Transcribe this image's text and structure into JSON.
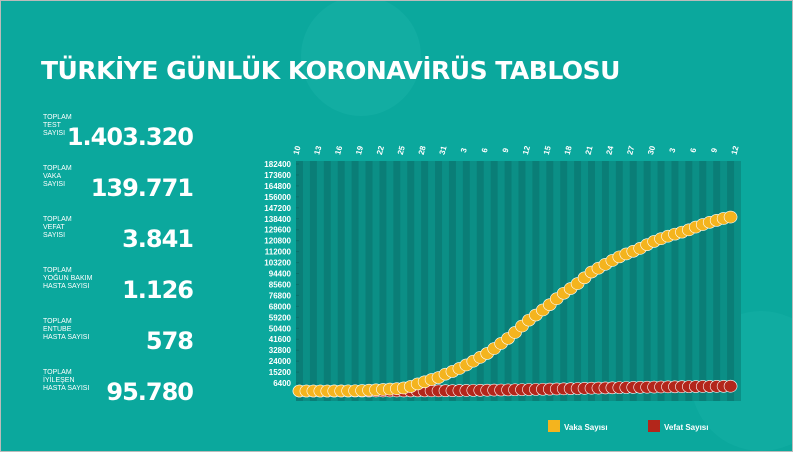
{
  "header": {
    "title": "TÜRKİYE GÜNLÜK KORONAVİRÜS TABLOSU"
  },
  "stats": [
    {
      "label": "TOPLAM\nTEST\nSAYISI",
      "value": "1.403.320"
    },
    {
      "label": "TOPLAM\nVAKA\nSAYISI",
      "value": "139.771"
    },
    {
      "label": "TOPLAM\nVEFAT\nSAYISI",
      "value": "3.841"
    },
    {
      "label": "TOPLAM\nYOĞUN BAKIM\nHASTA SAYISI",
      "value": "1.126"
    },
    {
      "label": "TOPLAM\nENTUBE\nHASTA SAYISI",
      "value": "578"
    },
    {
      "label": "TOPLAM\nİYİLEŞEN\nHASTA SAYISI",
      "value": "95.780"
    }
  ],
  "chart_data": {
    "type": "scatter",
    "categories": [
      "10",
      null,
      null,
      "13",
      null,
      null,
      "16",
      null,
      null,
      "19",
      null,
      null,
      "22",
      null,
      null,
      "25",
      null,
      null,
      "28",
      null,
      null,
      "31",
      null,
      null,
      "3",
      null,
      null,
      "6",
      null,
      null,
      "9",
      null,
      null,
      "12",
      null,
      null,
      "15",
      null,
      null,
      "18",
      null,
      null,
      "21",
      null,
      null,
      "24",
      null,
      null,
      "27",
      null,
      null,
      "30",
      null,
      null,
      "3",
      null,
      null,
      "6",
      null,
      null,
      "9",
      null,
      null,
      "12"
    ],
    "series": [
      {
        "name": "Vaka Sayısı",
        "color": "#f4b41e",
        "values": [
          0,
          1,
          1,
          5,
          6,
          18,
          47,
          98,
          191,
          359,
          670,
          947,
          1236,
          1529,
          1872,
          2433,
          3629,
          5698,
          7402,
          9217,
          10827,
          13531,
          15679,
          18135,
          20921,
          23934,
          27069,
          30217,
          34109,
          38226,
          42282,
          47029,
          52167,
          56956,
          61049,
          65111,
          69392,
          74193,
          78546,
          82329,
          86306,
          90980,
          95591,
          98674,
          101790,
          104912,
          107773,
          110130,
          112261,
          114653,
          117589,
          120204,
          122392,
          124375,
          126045,
          127659,
          129491,
          131744,
          133721,
          135569,
          137115,
          138657,
          139771,
          null
        ]
      },
      {
        "name": "Vefat Sayısı",
        "color": "#b3261b",
        "values": [
          0,
          0,
          0,
          0,
          0,
          0,
          0,
          1,
          2,
          3,
          9,
          21,
          30,
          37,
          44,
          59,
          75,
          92,
          108,
          131,
          168,
          214,
          277,
          356,
          425,
          501,
          574,
          649,
          725,
          812,
          908,
          1006,
          1101,
          1198,
          1296,
          1403,
          1518,
          1643,
          1769,
          1890,
          2017,
          2140,
          2259,
          2376,
          2491,
          2600,
          2706,
          2805,
          2900,
          2992,
          3081,
          3174,
          3258,
          3336,
          3397,
          3461,
          3520,
          3584,
          3641,
          3689,
          3739,
          3786,
          3841,
          null
        ]
      }
    ],
    "ylim": [
      0,
      182400
    ],
    "yticks": [
      6400,
      15200,
      24000,
      32800,
      41600,
      50400,
      59200,
      68000,
      76800,
      85600,
      94400,
      103200,
      112000,
      120800,
      129600,
      138400,
      147200,
      156000,
      164800,
      173600,
      182400
    ]
  }
}
